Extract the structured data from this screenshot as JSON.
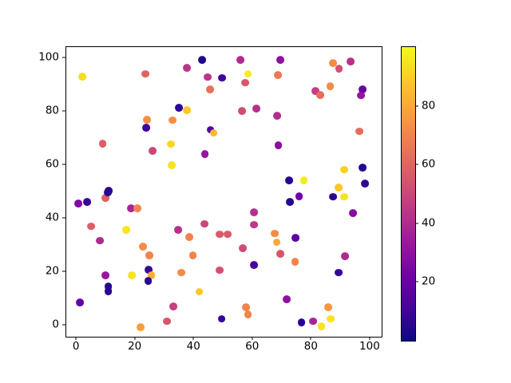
{
  "figure": {
    "background_color": "#ffffff",
    "spine_color": "#000000"
  },
  "chart_data": {
    "type": "scatter",
    "title": "",
    "xlabel": "",
    "ylabel": "",
    "grid": false,
    "n_points": 100,
    "xlim": [
      -3.3,
      104.1
    ],
    "ylim": [
      -4.4,
      103.9
    ],
    "x_ticks": [
      0,
      20,
      40,
      60,
      80,
      100
    ],
    "y_ticks": [
      0,
      20,
      40,
      60,
      80,
      100
    ],
    "clim": [
      0,
      100
    ],
    "colormap": "plasma",
    "colormap_stops": [
      "#0d0887",
      "#46039f",
      "#7201a8",
      "#9c179e",
      "#bd3786",
      "#d8576b",
      "#ed7953",
      "#fb9f3a",
      "#fdca26",
      "#f0f921"
    ],
    "colorbar": {
      "position": "right",
      "ticks": [
        20,
        40,
        60,
        80
      ],
      "range": [
        0,
        100
      ]
    },
    "point_fields": [
      "x",
      "y",
      "color_value"
    ],
    "points": [
      [
        2.1,
        92.9,
        93
      ],
      [
        23.7,
        93.9,
        60
      ],
      [
        24.1,
        76.8,
        73
      ],
      [
        23.9,
        73.8,
        10
      ],
      [
        32.8,
        76.6,
        73
      ],
      [
        9.1,
        67.8,
        58
      ],
      [
        26.0,
        65.1,
        50
      ],
      [
        32.4,
        67.6,
        92
      ],
      [
        32.7,
        59.8,
        95
      ],
      [
        11.2,
        50.1,
        6
      ],
      [
        42.9,
        99.1,
        4
      ],
      [
        55.9,
        99.1,
        40
      ],
      [
        37.8,
        96.1,
        44
      ],
      [
        58.6,
        93.9,
        97
      ],
      [
        44.8,
        92.7,
        44
      ],
      [
        49.7,
        92.4,
        10
      ],
      [
        57.7,
        90.6,
        56
      ],
      [
        45.7,
        88.1,
        64
      ],
      [
        35.1,
        81.1,
        6
      ],
      [
        37.7,
        80.3,
        88
      ],
      [
        56.6,
        80.0,
        52
      ],
      [
        61.5,
        81.0,
        42
      ],
      [
        68.5,
        78.2,
        41
      ],
      [
        45.8,
        73.0,
        15
      ],
      [
        46.9,
        71.8,
        84
      ],
      [
        43.9,
        63.9,
        32
      ],
      [
        69.6,
        99.1,
        30
      ],
      [
        87.6,
        97.8,
        72
      ],
      [
        93.5,
        98.6,
        42
      ],
      [
        89.6,
        95.8,
        53
      ],
      [
        68.7,
        93.4,
        66
      ],
      [
        86.6,
        89.2,
        72
      ],
      [
        81.6,
        87.5,
        47
      ],
      [
        83.2,
        86.0,
        62
      ],
      [
        97.6,
        88.1,
        20
      ],
      [
        97.0,
        85.8,
        32
      ],
      [
        96.5,
        72.4,
        62
      ],
      [
        68.9,
        67.2,
        29
      ],
      [
        97.5,
        58.9,
        5
      ],
      [
        91.4,
        58.1,
        90
      ],
      [
        72.6,
        54.0,
        5
      ],
      [
        77.6,
        54.0,
        97
      ],
      [
        98.5,
        52.9,
        7
      ],
      [
        89.5,
        51.3,
        88
      ],
      [
        10.1,
        47.5,
        58
      ],
      [
        10.9,
        49.6,
        5
      ],
      [
        0.8,
        45.4,
        26
      ],
      [
        3.8,
        46.0,
        8
      ],
      [
        18.8,
        43.7,
        38
      ],
      [
        20.9,
        43.7,
        70
      ],
      [
        5.1,
        36.9,
        58
      ],
      [
        17.1,
        35.5,
        95
      ],
      [
        8.1,
        31.5,
        40
      ],
      [
        22.9,
        29.4,
        72
      ],
      [
        24.9,
        25.9,
        70
      ],
      [
        24.8,
        20.6,
        8
      ],
      [
        10.0,
        18.5,
        33
      ],
      [
        19.0,
        18.6,
        95
      ],
      [
        25.7,
        18.5,
        82
      ],
      [
        24.6,
        16.5,
        5
      ],
      [
        11.0,
        14.3,
        5
      ],
      [
        11.0,
        12.6,
        5
      ],
      [
        1.3,
        8.3,
        18
      ],
      [
        33.2,
        6.8,
        48
      ],
      [
        31.0,
        1.4,
        55
      ],
      [
        22.0,
        -0.8,
        78
      ],
      [
        60.7,
        42.2,
        42
      ],
      [
        60.7,
        37.5,
        45
      ],
      [
        43.7,
        37.8,
        50
      ],
      [
        34.7,
        35.6,
        42
      ],
      [
        38.7,
        32.8,
        70
      ],
      [
        48.9,
        33.9,
        57
      ],
      [
        51.7,
        33.9,
        57
      ],
      [
        67.6,
        34.2,
        72
      ],
      [
        68.4,
        30.9,
        80
      ],
      [
        56.8,
        28.6,
        52
      ],
      [
        39.8,
        26.0,
        70
      ],
      [
        69.6,
        26.6,
        55
      ],
      [
        60.7,
        22.5,
        12
      ],
      [
        48.9,
        20.5,
        53
      ],
      [
        35.9,
        19.6,
        72
      ],
      [
        42.0,
        12.4,
        88
      ],
      [
        57.8,
        6.6,
        70
      ],
      [
        58.6,
        3.9,
        70
      ],
      [
        49.6,
        2.3,
        8
      ],
      [
        76.0,
        48.1,
        22
      ],
      [
        72.8,
        46.1,
        5
      ],
      [
        87.6,
        47.9,
        6
      ],
      [
        91.3,
        47.9,
        95
      ],
      [
        94.4,
        41.8,
        28
      ],
      [
        74.7,
        32.5,
        17
      ],
      [
        91.7,
        25.8,
        40
      ],
      [
        74.6,
        23.6,
        70
      ],
      [
        89.5,
        19.6,
        8
      ],
      [
        71.7,
        9.5,
        30
      ],
      [
        85.9,
        6.6,
        75
      ],
      [
        76.8,
        0.9,
        5
      ],
      [
        80.7,
        1.4,
        38
      ],
      [
        86.7,
        2.3,
        95
      ],
      [
        83.6,
        -0.5,
        95
      ]
    ]
  }
}
